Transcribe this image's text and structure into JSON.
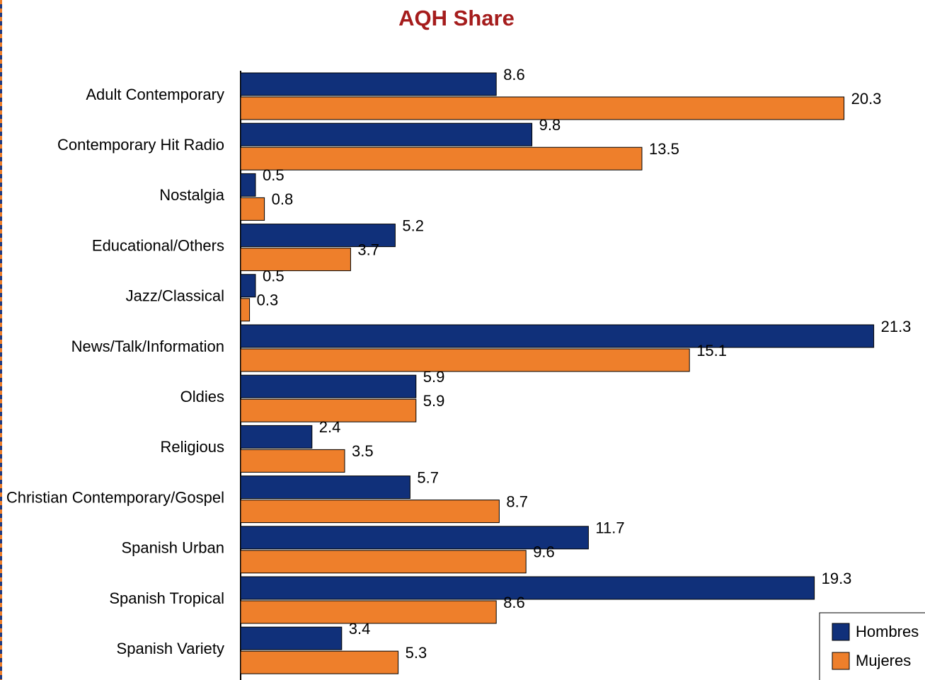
{
  "chart_data": {
    "type": "bar",
    "orientation": "horizontal",
    "title": "AQH Share",
    "categories": [
      "Adult Contemporary",
      "Contemporary Hit Radio",
      "Nostalgia",
      "Educational/Others",
      "Jazz/Classical",
      "News/Talk/Information",
      "Oldies",
      "Religious",
      "Christian Contemporary/Gospel",
      "Spanish Urban",
      "Spanish Tropical",
      "Spanish Variety"
    ],
    "series": [
      {
        "name": "Hombres",
        "color": "#10307a",
        "values": [
          8.6,
          9.8,
          0.5,
          5.2,
          0.5,
          21.3,
          5.9,
          2.4,
          5.7,
          11.7,
          19.3,
          3.4
        ]
      },
      {
        "name": "Mujeres",
        "color": "#ee7f2b",
        "values": [
          20.3,
          13.5,
          0.8,
          3.7,
          0.3,
          15.1,
          5.9,
          3.5,
          8.7,
          9.6,
          8.6,
          5.3
        ]
      }
    ],
    "xlim": [
      0,
      23
    ],
    "legend": "lower right"
  }
}
